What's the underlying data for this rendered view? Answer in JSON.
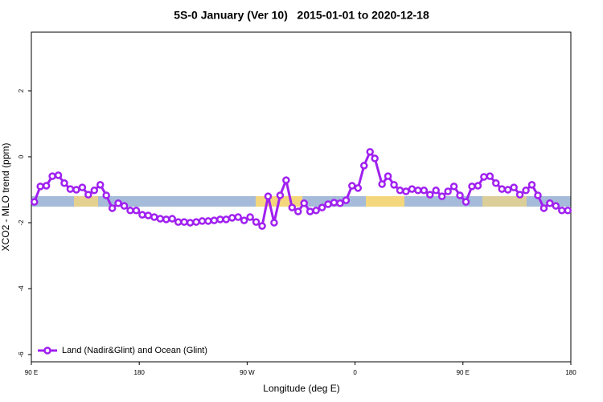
{
  "chart_data": {
    "type": "line",
    "title": "5S-0 January (Ver 10)   2015-01-01 to 2020-12-18",
    "x_label": "Longitude (deg E)",
    "y_label": "XCO2 - MLO trend (ppm)",
    "xlim": [
      90,
      540
    ],
    "ylim": [
      -6.22,
      3.78
    ],
    "xticks": [
      {
        "value": 90,
        "label": "90 E"
      },
      180,
      {
        "value": 270,
        "label": "90 W"
      },
      {
        "value": 360,
        "label": "0"
      },
      {
        "value": 450,
        "label": "90 E"
      },
      {
        "value": 540,
        "label": "180"
      }
    ],
    "yticks": [
      -6,
      -4,
      -2,
      0,
      2
    ],
    "legend": "bottom-left",
    "x": [
      92.5,
      97.5,
      102.5,
      107.5,
      112.5,
      117.5,
      122.5,
      127.5,
      132.5,
      137.5,
      142.5,
      147.5,
      152.5,
      157.5,
      162.5,
      167.5,
      172.5,
      177.5,
      182.5,
      187.5,
      192.5,
      197.5,
      202.5,
      207.5,
      212.5,
      217.5,
      222.5,
      227.5,
      232.5,
      237.5,
      242.5,
      247.5,
      252.5,
      257.5,
      262.5,
      267.5,
      272.5,
      277.5,
      282.5,
      287.5,
      292.5,
      297.5,
      302.5,
      307.5,
      312.5,
      317.5,
      322.5,
      327.5,
      332.5,
      337.5,
      342.5,
      347.5,
      352.5,
      357.5,
      362.5,
      367.5,
      372.5,
      376.5,
      382.5,
      387.5,
      392.5,
      397.5,
      402.5,
      407.5,
      412.5,
      417.5,
      422.5,
      427.5,
      432.5,
      437.5,
      442.5,
      447.5,
      452.5,
      457.5,
      462.5,
      467.5,
      472.5,
      477.5,
      482.5,
      487.5,
      492.5,
      497.5,
      502.5,
      507.5,
      512.5,
      517.5,
      522.5,
      527.5,
      532.5,
      537.5
    ],
    "series": [
      {
        "name": "Land (Nadir&Glint) and Ocean (Glint)",
        "color": "#a020f0",
        "values": [
          -1.37,
          -0.9,
          -0.88,
          -0.59,
          -0.56,
          -0.8,
          -0.98,
          -1.0,
          -0.93,
          -1.15,
          -1.02,
          -0.85,
          -1.17,
          -1.56,
          -1.41,
          -1.49,
          -1.63,
          -1.63,
          -1.76,
          -1.78,
          -1.83,
          -1.88,
          -1.9,
          -1.88,
          -1.98,
          -1.98,
          -2.0,
          -1.98,
          -1.95,
          -1.95,
          -1.93,
          -1.9,
          -1.9,
          -1.85,
          -1.83,
          -1.93,
          -1.83,
          -1.98,
          -2.1,
          -1.2,
          -2.0,
          -1.17,
          -0.71,
          -1.54,
          -1.66,
          -1.41,
          -1.66,
          -1.63,
          -1.54,
          -1.44,
          -1.39,
          -1.41,
          -1.32,
          -0.88,
          -0.95,
          -0.27,
          0.15,
          -0.05,
          -0.83,
          -0.59,
          -0.85,
          -1.02,
          -1.05,
          -0.98,
          -1.02,
          -1.02,
          -1.15,
          -1.02,
          -1.2,
          -1.05,
          -0.9,
          -1.17,
          -1.37,
          -0.9,
          -0.88,
          -0.61,
          -0.59,
          -0.8,
          -0.98,
          -1.0,
          -0.93,
          -1.15,
          -1.02,
          -0.85,
          -1.17,
          -1.56,
          -1.41,
          -1.49,
          -1.63,
          -1.63
        ]
      }
    ]
  }
}
